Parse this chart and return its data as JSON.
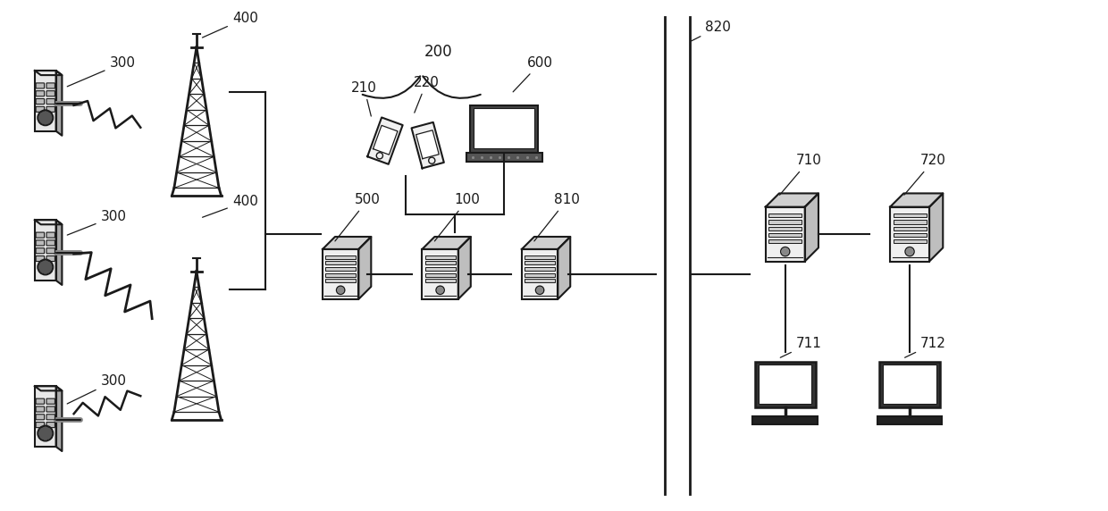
{
  "bg_color": "#ffffff",
  "line_color": "#1a1a1a",
  "label_color": "#1a1a1a",
  "fig_width": 12.4,
  "fig_height": 5.72
}
